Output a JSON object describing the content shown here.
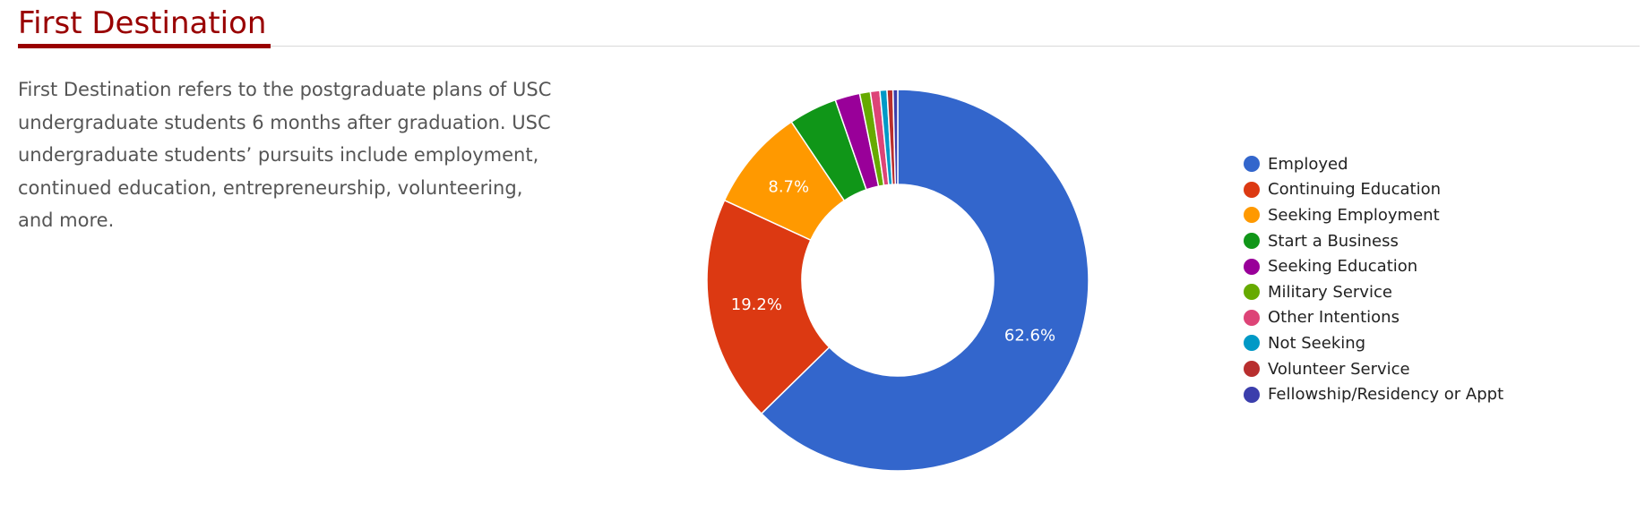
{
  "section": {
    "title": "First Destination",
    "description": "First Destination refers to the postgraduate plans of USC undergraduate students 6 months after graduation. USC undergraduate students’ pursuits include employment, continued education, entrepreneurship, volunteering, and more."
  },
  "chart_data": {
    "type": "pie",
    "donut": true,
    "legend_position": "right",
    "unit": "%",
    "categories": [
      "Employed",
      "Continuing Education",
      "Seeking Employment",
      "Start a Business",
      "Seeking Education",
      "Military Service",
      "Other Intentions",
      "Not Seeking",
      "Volunteer Service",
      "Fellowship/Residency or Appt"
    ],
    "values": [
      62.6,
      19.2,
      8.7,
      4.1,
      2.1,
      0.9,
      0.8,
      0.6,
      0.5,
      0.4
    ],
    "data_labels": [
      "62.6%",
      "19.2%",
      "8.7%",
      "",
      "",
      "",
      "",
      "",
      "",
      ""
    ],
    "colors": [
      "#3366cc",
      "#dc3912",
      "#ff9900",
      "#109618",
      "#990099",
      "#66aa00",
      "#dd4477",
      "#0099c6",
      "#b82e2e",
      "#3b3eac"
    ]
  }
}
